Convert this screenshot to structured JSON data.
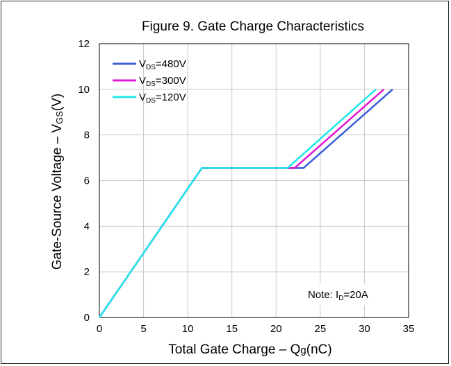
{
  "chart_data": {
    "type": "line",
    "title": "Figure 9. Gate Charge Characteristics",
    "xlabel": {
      "main": "Total Gate Charge",
      "sep": "–",
      "sym": "Q",
      "sub": "g",
      "unit": "(nC)"
    },
    "ylabel": {
      "main": "Gate-Source Voltage",
      "sep": "–",
      "sym": "V",
      "sub": "GS",
      "unit": "(V)"
    },
    "xlim": [
      0,
      35
    ],
    "ylim": [
      0,
      12
    ],
    "xticks": [
      0,
      5,
      10,
      15,
      20,
      25,
      30,
      35
    ],
    "yticks": [
      0,
      2,
      4,
      6,
      8,
      10,
      12
    ],
    "grid": true,
    "legend_position": "top-left",
    "series": [
      {
        "name": {
          "sym": "V",
          "sub": "DS",
          "val": "=480V"
        },
        "color": "#3b5fd9",
        "x": [
          0,
          11.6,
          23.1,
          33.2
        ],
        "y": [
          0,
          6.55,
          6.55,
          10
        ]
      },
      {
        "name": {
          "sym": "V",
          "sub": "DS",
          "val": "=300V"
        },
        "color": "#e01ad6",
        "x": [
          0,
          11.6,
          22.1,
          32.2
        ],
        "y": [
          0,
          6.55,
          6.55,
          10
        ]
      },
      {
        "name": {
          "sym": "V",
          "sub": "DS",
          "val": "=120V"
        },
        "color": "#22e8e8",
        "x": [
          0,
          11.6,
          21.3,
          31.3
        ],
        "y": [
          0,
          6.55,
          6.55,
          10
        ]
      }
    ],
    "annotation": {
      "prefix": "Note: I",
      "sub": "D",
      "suffix": "=20A"
    }
  }
}
